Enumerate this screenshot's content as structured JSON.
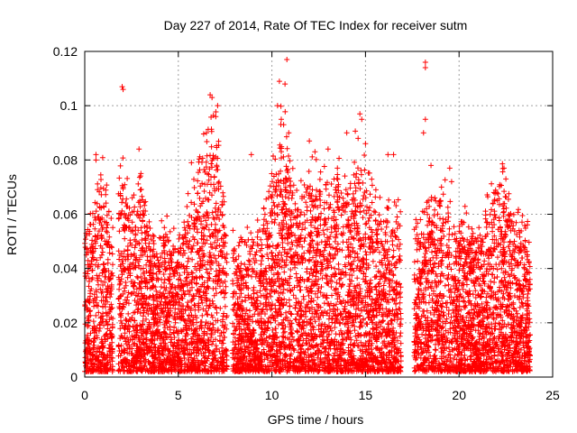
{
  "chart_data": {
    "type": "scatter",
    "title": "Day 227 of 2014, Rate Of TEC Index for receiver sutm",
    "xlabel": "GPS time / hours",
    "ylabel": "ROTI / TECUs",
    "xlim": [
      0,
      25
    ],
    "ylim": [
      0,
      0.12
    ],
    "x_ticks": [
      "0",
      "5",
      "10",
      "15",
      "20",
      "25"
    ],
    "y_ticks": [
      "0",
      "0.02",
      "0.04",
      "0.06",
      "0.08",
      "0.1",
      "0.12"
    ],
    "x_tick_values": [
      0,
      5,
      10,
      15,
      20,
      25
    ],
    "y_tick_values": [
      0,
      0.02,
      0.04,
      0.06,
      0.08,
      0.1,
      0.12
    ],
    "grid": true,
    "marker": "+",
    "marker_color": "#ff0000",
    "data_gaps_hours": [
      [
        1.5,
        1.8
      ],
      [
        7.6,
        7.9
      ],
      [
        16.9,
        17.6
      ],
      [
        23.8,
        25
      ]
    ],
    "envelope": [
      {
        "x": 0.0,
        "y_max": 0.05
      },
      {
        "x": 0.5,
        "y_max": 0.06
      },
      {
        "x": 1.0,
        "y_max": 0.075
      },
      {
        "x": 1.4,
        "y_max": 0.05
      },
      {
        "x": 2.0,
        "y_max": 0.076
      },
      {
        "x": 2.5,
        "y_max": 0.06
      },
      {
        "x": 3.0,
        "y_max": 0.07
      },
      {
        "x": 3.5,
        "y_max": 0.05
      },
      {
        "x": 4.0,
        "y_max": 0.05
      },
      {
        "x": 4.5,
        "y_max": 0.05
      },
      {
        "x": 5.0,
        "y_max": 0.045
      },
      {
        "x": 5.5,
        "y_max": 0.06
      },
      {
        "x": 6.0,
        "y_max": 0.07
      },
      {
        "x": 6.5,
        "y_max": 0.085
      },
      {
        "x": 7.0,
        "y_max": 0.09
      },
      {
        "x": 7.4,
        "y_max": 0.06
      },
      {
        "x": 8.0,
        "y_max": 0.045
      },
      {
        "x": 8.5,
        "y_max": 0.045
      },
      {
        "x": 9.0,
        "y_max": 0.05
      },
      {
        "x": 9.5,
        "y_max": 0.055
      },
      {
        "x": 10.0,
        "y_max": 0.07
      },
      {
        "x": 10.5,
        "y_max": 0.09
      },
      {
        "x": 11.0,
        "y_max": 0.08
      },
      {
        "x": 11.5,
        "y_max": 0.065
      },
      {
        "x": 12.0,
        "y_max": 0.07
      },
      {
        "x": 12.5,
        "y_max": 0.07
      },
      {
        "x": 13.0,
        "y_max": 0.065
      },
      {
        "x": 13.5,
        "y_max": 0.07
      },
      {
        "x": 14.0,
        "y_max": 0.065
      },
      {
        "x": 14.5,
        "y_max": 0.08
      },
      {
        "x": 15.0,
        "y_max": 0.075
      },
      {
        "x": 15.5,
        "y_max": 0.06
      },
      {
        "x": 16.0,
        "y_max": 0.055
      },
      {
        "x": 16.5,
        "y_max": 0.06
      },
      {
        "x": 17.8,
        "y_max": 0.05
      },
      {
        "x": 18.3,
        "y_max": 0.06
      },
      {
        "x": 18.8,
        "y_max": 0.065
      },
      {
        "x": 19.3,
        "y_max": 0.065
      },
      {
        "x": 19.8,
        "y_max": 0.055
      },
      {
        "x": 20.3,
        "y_max": 0.055
      },
      {
        "x": 20.8,
        "y_max": 0.05
      },
      {
        "x": 21.3,
        "y_max": 0.055
      },
      {
        "x": 21.8,
        "y_max": 0.065
      },
      {
        "x": 22.3,
        "y_max": 0.07
      },
      {
        "x": 22.8,
        "y_max": 0.06
      },
      {
        "x": 23.3,
        "y_max": 0.055
      },
      {
        "x": 23.7,
        "y_max": 0.05
      }
    ],
    "notable_points": [
      {
        "x": 2.0,
        "y": 0.107
      },
      {
        "x": 2.05,
        "y": 0.106
      },
      {
        "x": 6.7,
        "y": 0.104
      },
      {
        "x": 6.8,
        "y": 0.103
      },
      {
        "x": 7.1,
        "y": 0.1
      },
      {
        "x": 7.0,
        "y": 0.096
      },
      {
        "x": 0.6,
        "y": 0.082
      },
      {
        "x": 0.6,
        "y": 0.08
      },
      {
        "x": 2.9,
        "y": 0.084
      },
      {
        "x": 3.0,
        "y": 0.075
      },
      {
        "x": 5.7,
        "y": 0.079
      },
      {
        "x": 6.5,
        "y": 0.09
      },
      {
        "x": 8.9,
        "y": 0.082
      },
      {
        "x": 10.4,
        "y": 0.109
      },
      {
        "x": 10.7,
        "y": 0.108
      },
      {
        "x": 10.8,
        "y": 0.117
      },
      {
        "x": 10.3,
        "y": 0.1
      },
      {
        "x": 10.5,
        "y": 0.095
      },
      {
        "x": 10.9,
        "y": 0.09
      },
      {
        "x": 12.0,
        "y": 0.087
      },
      {
        "x": 12.3,
        "y": 0.083
      },
      {
        "x": 13.0,
        "y": 0.084
      },
      {
        "x": 13.5,
        "y": 0.077
      },
      {
        "x": 14.0,
        "y": 0.09
      },
      {
        "x": 14.7,
        "y": 0.097
      },
      {
        "x": 14.8,
        "y": 0.095
      },
      {
        "x": 15.0,
        "y": 0.086
      },
      {
        "x": 16.2,
        "y": 0.082
      },
      {
        "x": 16.5,
        "y": 0.082
      },
      {
        "x": 18.2,
        "y": 0.116
      },
      {
        "x": 18.2,
        "y": 0.114
      },
      {
        "x": 18.1,
        "y": 0.09
      },
      {
        "x": 18.2,
        "y": 0.095
      },
      {
        "x": 18.5,
        "y": 0.078
      },
      {
        "x": 19.5,
        "y": 0.077
      },
      {
        "x": 19.6,
        "y": 0.072
      },
      {
        "x": 22.4,
        "y": 0.077
      },
      {
        "x": 22.5,
        "y": 0.073
      }
    ]
  }
}
